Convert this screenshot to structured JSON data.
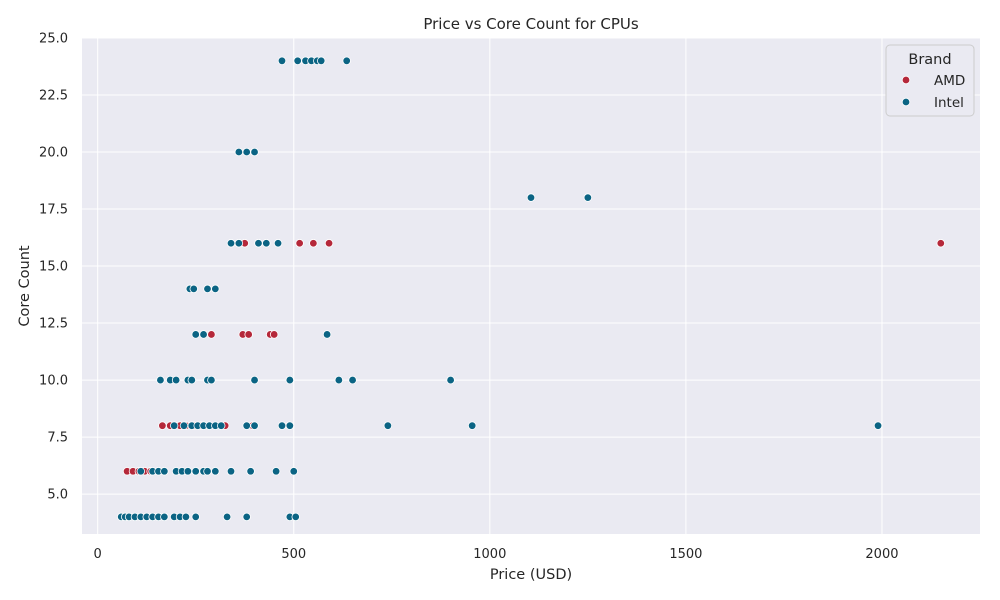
{
  "chart_data": {
    "type": "scatter",
    "title": "Price vs Core Count for CPUs",
    "xlabel": "Price (USD)",
    "ylabel": "Core Count",
    "xlim": [
      -40,
      2250
    ],
    "ylim": [
      3.25,
      25
    ],
    "xticks": [
      0,
      500,
      1000,
      1500,
      2000
    ],
    "yticks": [
      5.0,
      7.5,
      10.0,
      12.5,
      15.0,
      17.5,
      20.0,
      22.5,
      25.0
    ],
    "xtick_labels": [
      "0",
      "500",
      "1000",
      "1500",
      "2000"
    ],
    "ytick_labels": [
      "5.0",
      "7.5",
      "10.0",
      "12.5",
      "15.0",
      "17.5",
      "20.0",
      "22.5",
      "25.0"
    ],
    "grid": true,
    "background": "#EAEAF2",
    "legend": {
      "title": "Brand",
      "placement": "top-right"
    },
    "series": [
      {
        "name": "AMD",
        "color": "#B5283A",
        "points": [
          [
            75,
            6
          ],
          [
            90,
            6
          ],
          [
            105,
            6
          ],
          [
            120,
            6
          ],
          [
            135,
            6
          ],
          [
            155,
            6
          ],
          [
            170,
            6
          ],
          [
            165,
            8
          ],
          [
            185,
            8
          ],
          [
            210,
            8
          ],
          [
            225,
            8
          ],
          [
            245,
            8
          ],
          [
            265,
            8
          ],
          [
            325,
            8
          ],
          [
            395,
            8
          ],
          [
            290,
            12
          ],
          [
            370,
            12
          ],
          [
            385,
            12
          ],
          [
            440,
            12
          ],
          [
            450,
            12
          ],
          [
            375,
            16
          ],
          [
            515,
            16
          ],
          [
            550,
            16
          ],
          [
            590,
            16
          ],
          [
            2150,
            16
          ]
        ]
      },
      {
        "name": "Intel",
        "color": "#0B6484",
        "points": [
          [
            60,
            4
          ],
          [
            70,
            4
          ],
          [
            80,
            4
          ],
          [
            95,
            4
          ],
          [
            110,
            4
          ],
          [
            125,
            4
          ],
          [
            140,
            4
          ],
          [
            155,
            4
          ],
          [
            170,
            4
          ],
          [
            195,
            4
          ],
          [
            210,
            4
          ],
          [
            225,
            4
          ],
          [
            250,
            4
          ],
          [
            330,
            4
          ],
          [
            380,
            4
          ],
          [
            490,
            4
          ],
          [
            505,
            4
          ],
          [
            110,
            6
          ],
          [
            140,
            6
          ],
          [
            155,
            6
          ],
          [
            170,
            6
          ],
          [
            200,
            6
          ],
          [
            215,
            6
          ],
          [
            230,
            6
          ],
          [
            250,
            6
          ],
          [
            270,
            6
          ],
          [
            280,
            6
          ],
          [
            300,
            6
          ],
          [
            340,
            6
          ],
          [
            390,
            6
          ],
          [
            455,
            6
          ],
          [
            500,
            6
          ],
          [
            195,
            8
          ],
          [
            220,
            8
          ],
          [
            240,
            8
          ],
          [
            255,
            8
          ],
          [
            270,
            8
          ],
          [
            285,
            8
          ],
          [
            300,
            8
          ],
          [
            315,
            8
          ],
          [
            380,
            8
          ],
          [
            400,
            8
          ],
          [
            470,
            8
          ],
          [
            490,
            8
          ],
          [
            740,
            8
          ],
          [
            955,
            8
          ],
          [
            1990,
            8
          ],
          [
            160,
            10
          ],
          [
            185,
            10
          ],
          [
            200,
            10
          ],
          [
            230,
            10
          ],
          [
            240,
            10
          ],
          [
            280,
            10
          ],
          [
            290,
            10
          ],
          [
            400,
            10
          ],
          [
            490,
            10
          ],
          [
            615,
            10
          ],
          [
            650,
            10
          ],
          [
            900,
            10
          ],
          [
            250,
            12
          ],
          [
            270,
            12
          ],
          [
            585,
            12
          ],
          [
            235,
            14
          ],
          [
            245,
            14
          ],
          [
            280,
            14
          ],
          [
            300,
            14
          ],
          [
            340,
            16
          ],
          [
            360,
            16
          ],
          [
            410,
            16
          ],
          [
            430,
            16
          ],
          [
            460,
            16
          ],
          [
            1105,
            18
          ],
          [
            1250,
            18
          ],
          [
            360,
            20
          ],
          [
            380,
            20
          ],
          [
            400,
            20
          ],
          [
            470,
            24
          ],
          [
            510,
            24
          ],
          [
            530,
            24
          ],
          [
            545,
            24
          ],
          [
            560,
            24
          ],
          [
            570,
            24
          ],
          [
            635,
            24
          ]
        ]
      }
    ]
  }
}
